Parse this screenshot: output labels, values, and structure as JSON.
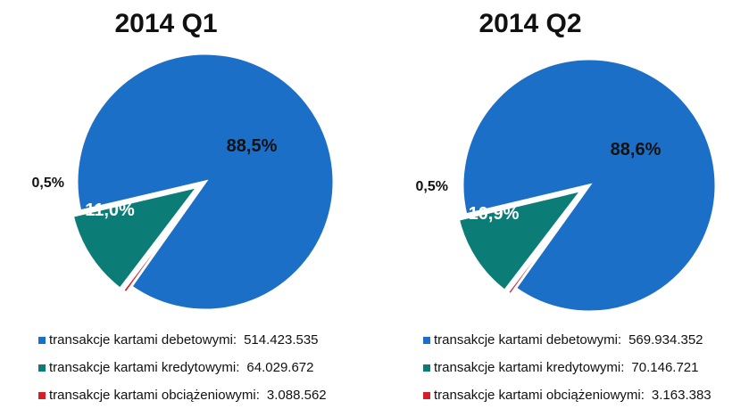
{
  "colors": {
    "debit": "#1c6fc6",
    "credit": "#0c7d76",
    "charge": "#d21f2a"
  },
  "chart_data": [
    {
      "type": "pie",
      "title": "2014 Q1",
      "slices": [
        {
          "label": "transakcje kartami debetowymi:",
          "value": 514423535,
          "value_label": "514.423.535",
          "percent_label": "88,5%",
          "color": "#1c6fc6"
        },
        {
          "label": "transakcje kartami kredytowymi:",
          "value": 64029672,
          "value_label": "64.029.672",
          "percent_label": "11,0%",
          "color": "#0c7d76"
        },
        {
          "label": "transakcje kartami obciążeniowymi:",
          "value": 3088562,
          "value_label": "3.088.562",
          "percent_label": "0,5%",
          "color": "#d21f2a"
        }
      ]
    },
    {
      "type": "pie",
      "title": "2014 Q2",
      "slices": [
        {
          "label": "transakcje kartami debetowymi:",
          "value": 569934352,
          "value_label": "569.934.352",
          "percent_label": "88,6%",
          "color": "#1c6fc6"
        },
        {
          "label": "transakcje kartami kredytowymi:",
          "value": 70146721,
          "value_label": "70.146.721",
          "percent_label": "10,9%",
          "color": "#0c7d76"
        },
        {
          "label": "transakcje kartami obciążeniowymi:",
          "value": 3163383,
          "value_label": "3.163.383",
          "percent_label": "0,5%",
          "color": "#d21f2a"
        }
      ]
    }
  ]
}
